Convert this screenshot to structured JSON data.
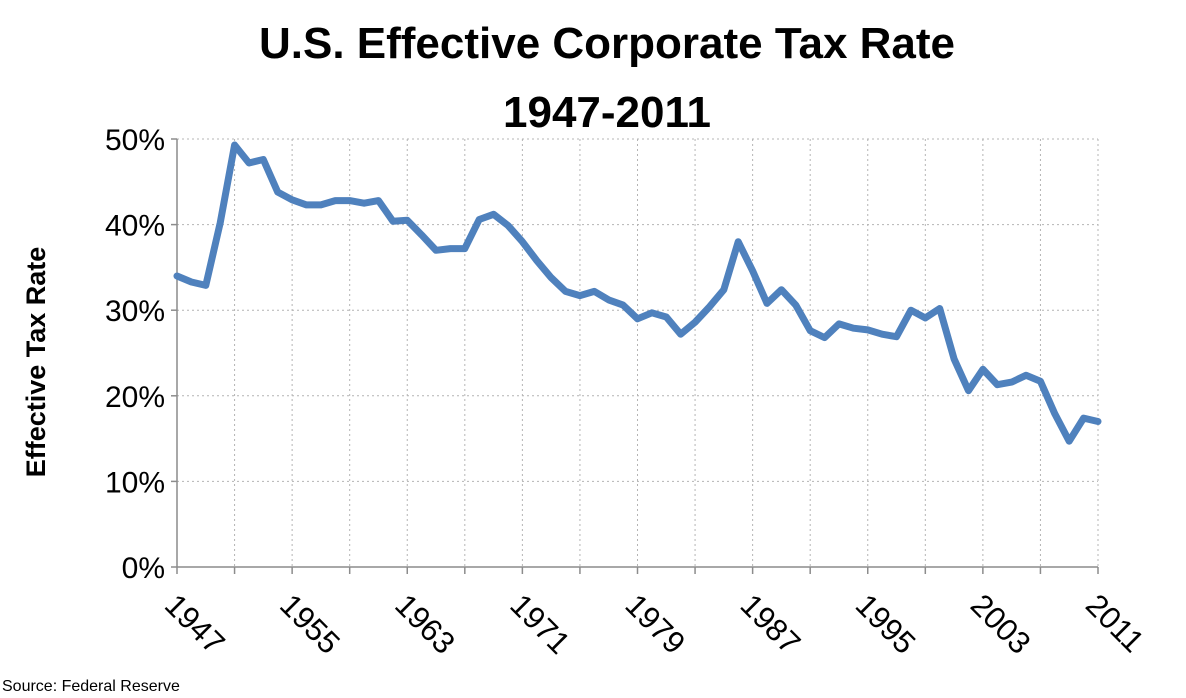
{
  "chart_data": {
    "type": "line",
    "title": [
      "U.S. Effective Corporate Tax Rate",
      "1947-2011"
    ],
    "ylabel": "Effective Tax Rate",
    "xlabel": "",
    "source": "Source: Federal Reserve",
    "xlim": [
      1947,
      2011
    ],
    "ylim": [
      0,
      50
    ],
    "y_ticks": [
      0,
      10,
      20,
      30,
      40,
      50
    ],
    "y_tick_labels": [
      "0%",
      "10%",
      "20%",
      "30%",
      "40%",
      "50%"
    ],
    "x_ticks": [
      1947,
      1955,
      1963,
      1971,
      1979,
      1987,
      1995,
      2003,
      2011
    ],
    "x_tick_labels": [
      "1947",
      "1955",
      "1963",
      "1971",
      "1979",
      "1987",
      "1995",
      "2003",
      "2011"
    ],
    "grid": true,
    "legend": false,
    "series": [
      {
        "color": "#4f81bd",
        "x": [
          1947,
          1948,
          1949,
          1950,
          1951,
          1952,
          1953,
          1954,
          1955,
          1956,
          1957,
          1958,
          1959,
          1960,
          1961,
          1962,
          1963,
          1964,
          1965,
          1966,
          1967,
          1968,
          1969,
          1970,
          1971,
          1972,
          1973,
          1974,
          1975,
          1976,
          1977,
          1978,
          1979,
          1980,
          1981,
          1982,
          1983,
          1984,
          1985,
          1986,
          1987,
          1988,
          1989,
          1990,
          1991,
          1992,
          1993,
          1994,
          1995,
          1996,
          1997,
          1998,
          1999,
          2000,
          2001,
          2002,
          2003,
          2004,
          2005,
          2006,
          2007,
          2008,
          2009,
          2010,
          2011
        ],
        "values": [
          34.0,
          33.3,
          32.9,
          40.2,
          49.3,
          47.2,
          47.6,
          43.8,
          42.9,
          42.3,
          42.3,
          42.8,
          42.8,
          42.5,
          42.8,
          40.4,
          40.5,
          38.8,
          37.0,
          37.2,
          37.2,
          40.6,
          41.2,
          39.9,
          38.0,
          35.8,
          33.8,
          32.2,
          31.7,
          32.2,
          31.2,
          30.6,
          29.0,
          29.7,
          29.2,
          27.2,
          28.6,
          30.4,
          32.4,
          38.0,
          34.6,
          30.8,
          32.4,
          30.6,
          27.6,
          26.8,
          28.4,
          27.9,
          27.7,
          27.2,
          26.9,
          30.0,
          29.1,
          30.2,
          24.3,
          20.6,
          23.1,
          21.3,
          21.6,
          22.4,
          21.7,
          17.9,
          14.7,
          17.4,
          17.0
        ]
      }
    ]
  }
}
